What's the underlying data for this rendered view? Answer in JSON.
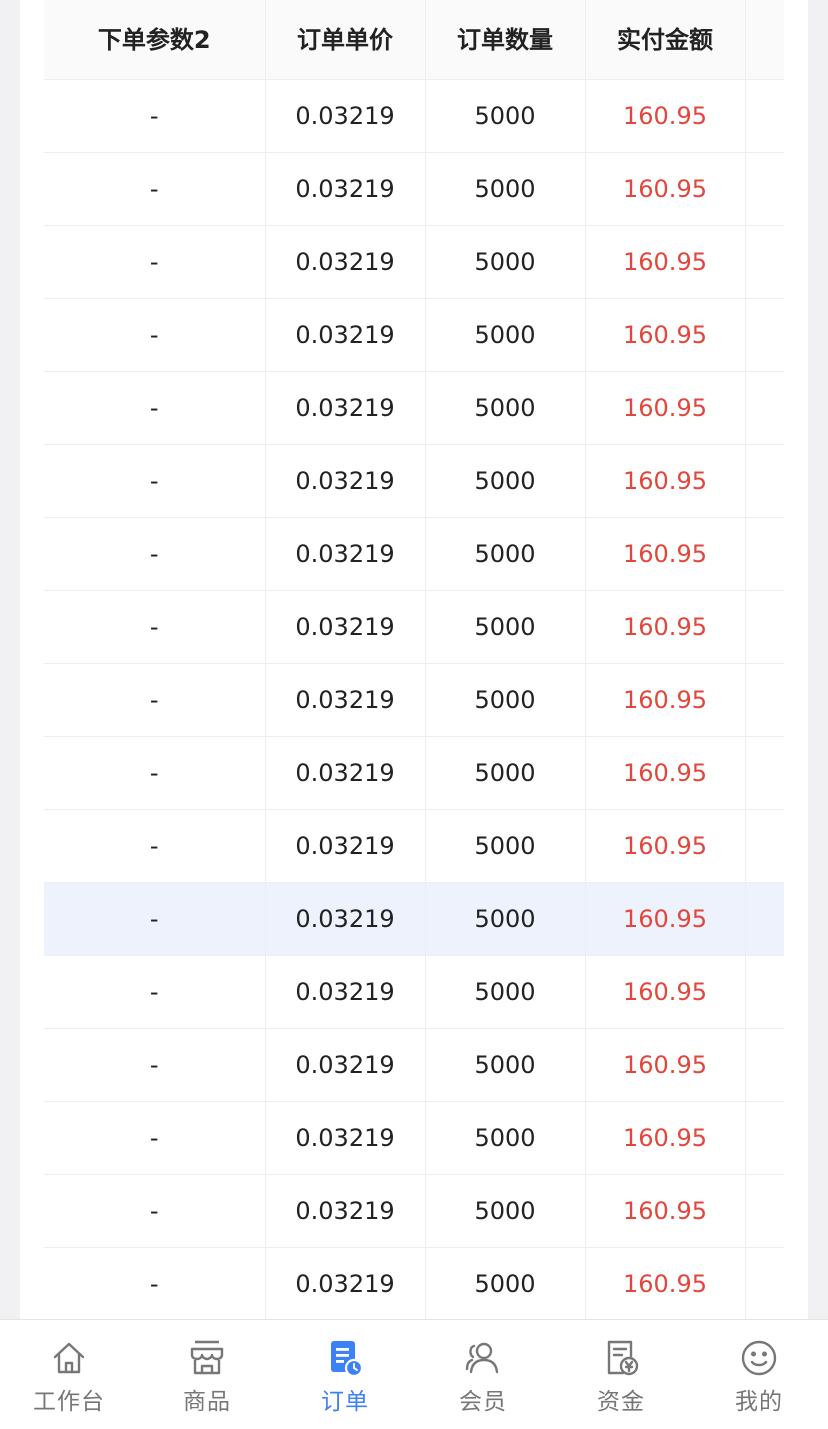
{
  "table": {
    "headers": [
      "下单参数2",
      "订单单价",
      "订单数量",
      "实付金额",
      ""
    ],
    "rows": [
      [
        "-",
        "0.03219",
        "5000",
        "160.95"
      ],
      [
        "-",
        "0.03219",
        "5000",
        "160.95"
      ],
      [
        "-",
        "0.03219",
        "5000",
        "160.95"
      ],
      [
        "-",
        "0.03219",
        "5000",
        "160.95"
      ],
      [
        "-",
        "0.03219",
        "5000",
        "160.95"
      ],
      [
        "-",
        "0.03219",
        "5000",
        "160.95"
      ],
      [
        "-",
        "0.03219",
        "5000",
        "160.95"
      ],
      [
        "-",
        "0.03219",
        "5000",
        "160.95"
      ],
      [
        "-",
        "0.03219",
        "5000",
        "160.95"
      ],
      [
        "-",
        "0.03219",
        "5000",
        "160.95"
      ],
      [
        "-",
        "0.03219",
        "5000",
        "160.95"
      ],
      [
        "-",
        "0.03219",
        "5000",
        "160.95"
      ],
      [
        "-",
        "0.03219",
        "5000",
        "160.95"
      ],
      [
        "-",
        "0.03219",
        "5000",
        "160.95"
      ],
      [
        "-",
        "0.03219",
        "5000",
        "160.95"
      ],
      [
        "-",
        "0.03219",
        "5000",
        "160.95"
      ],
      [
        "-",
        "0.03219",
        "5000",
        "160.95"
      ]
    ],
    "highlighted_row_index": 11
  },
  "tabbar": {
    "items": [
      {
        "label": "工作台",
        "icon": "home-icon"
      },
      {
        "label": "商品",
        "icon": "store-icon"
      },
      {
        "label": "订单",
        "icon": "order-icon",
        "active": true
      },
      {
        "label": "会员",
        "icon": "members-icon"
      },
      {
        "label": "资金",
        "icon": "funds-icon"
      },
      {
        "label": "我的",
        "icon": "smiley-icon"
      }
    ]
  },
  "colors": {
    "amount": "#e2463c",
    "active_tab": "#3b82f6",
    "inactive_tab": "#777777",
    "row_highlight": "#edf2fd"
  }
}
